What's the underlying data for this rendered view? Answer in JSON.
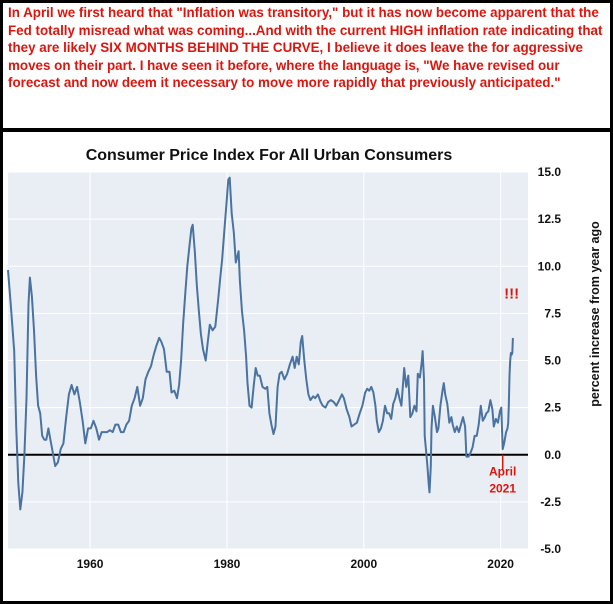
{
  "note": {
    "text": "In April we first heard that \"Inflation was transitory,\" but it has now become apparent that the  Fed totally misread what was coming...And with the current HIGH inflation rate indicating that they are likely SIX MONTHS BEHIND THE CURVE, I believe it does leave the for aggressive moves on their part. I have seen it before, where the language is, \"We have revised our forecast and now deem it necessary to move more rapidly that previously anticipated.\"",
    "color": "#e0140c"
  },
  "chart_data": {
    "type": "line",
    "title": "Consumer Price Index For All Urban Consumers",
    "ylabel": "percent increase from year ago",
    "xlim": [
      1948,
      2024
    ],
    "ylim": [
      -5,
      15
    ],
    "x_ticks": [
      1960,
      1980,
      2000,
      2020
    ],
    "x_tick_labels": [
      "1960",
      "1980",
      "2000",
      "2020"
    ],
    "y_ticks": [
      15,
      12.5,
      10,
      7.5,
      5,
      2.5,
      0,
      -2.5,
      -5
    ],
    "y_tick_labels": [
      "15.0",
      "12.5",
      "10.0",
      "7.5",
      "5.0",
      "2.5",
      "0.0",
      "-2.5",
      "-5.0"
    ],
    "grid": true,
    "zero_line": true,
    "colors": {
      "line": "#4a73a2",
      "plot_bg": "#e9eef5",
      "grid": "#ffffff",
      "annotation": "#e0140c"
    },
    "annotations": [
      {
        "text": "!!!",
        "x": 2021.6,
        "y": 8.3
      },
      {
        "text": "April",
        "x": 2020.3,
        "y": -1.1
      },
      {
        "text": "2021",
        "x": 2020.3,
        "y": -2.0
      }
    ],
    "marker": {
      "x": 2020.3,
      "y_from": 0,
      "y_to": -0.8
    },
    "series": [
      {
        "points": [
          [
            1948.0,
            9.8
          ],
          [
            1948.4,
            8.0
          ],
          [
            1948.9,
            5.5
          ],
          [
            1949.2,
            1.5
          ],
          [
            1949.5,
            -1.5
          ],
          [
            1949.8,
            -2.9
          ],
          [
            1950.1,
            -2.0
          ],
          [
            1950.4,
            0.0
          ],
          [
            1950.7,
            3.0
          ],
          [
            1951.0,
            8.0
          ],
          [
            1951.2,
            9.4
          ],
          [
            1951.5,
            8.4
          ],
          [
            1951.8,
            6.6
          ],
          [
            1952.1,
            4.2
          ],
          [
            1952.4,
            2.6
          ],
          [
            1952.7,
            2.2
          ],
          [
            1953.0,
            1.0
          ],
          [
            1953.3,
            0.8
          ],
          [
            1953.6,
            0.8
          ],
          [
            1953.9,
            1.4
          ],
          [
            1954.2,
            0.8
          ],
          [
            1954.5,
            0.2
          ],
          [
            1954.9,
            -0.6
          ],
          [
            1955.3,
            -0.4
          ],
          [
            1955.7,
            0.3
          ],
          [
            1956.1,
            0.6
          ],
          [
            1956.5,
            2.0
          ],
          [
            1956.9,
            3.2
          ],
          [
            1957.3,
            3.7
          ],
          [
            1957.7,
            3.2
          ],
          [
            1958.1,
            3.6
          ],
          [
            1958.5,
            2.8
          ],
          [
            1958.9,
            1.8
          ],
          [
            1959.3,
            0.6
          ],
          [
            1959.7,
            1.4
          ],
          [
            1960.1,
            1.4
          ],
          [
            1960.5,
            1.8
          ],
          [
            1960.9,
            1.4
          ],
          [
            1961.3,
            0.8
          ],
          [
            1961.7,
            1.2
          ],
          [
            1962.1,
            1.2
          ],
          [
            1962.5,
            1.2
          ],
          [
            1962.9,
            1.3
          ],
          [
            1963.3,
            1.2
          ],
          [
            1963.7,
            1.6
          ],
          [
            1964.1,
            1.6
          ],
          [
            1964.5,
            1.2
          ],
          [
            1964.9,
            1.2
          ],
          [
            1965.3,
            1.6
          ],
          [
            1965.7,
            1.8
          ],
          [
            1966.1,
            2.6
          ],
          [
            1966.5,
            3.0
          ],
          [
            1966.9,
            3.6
          ],
          [
            1967.3,
            2.6
          ],
          [
            1967.7,
            3.0
          ],
          [
            1968.1,
            4.0
          ],
          [
            1968.5,
            4.4
          ],
          [
            1968.9,
            4.7
          ],
          [
            1969.3,
            5.3
          ],
          [
            1969.7,
            5.8
          ],
          [
            1970.1,
            6.2
          ],
          [
            1970.4,
            6.0
          ],
          [
            1970.8,
            5.6
          ],
          [
            1971.2,
            4.4
          ],
          [
            1971.6,
            4.4
          ],
          [
            1971.9,
            3.3
          ],
          [
            1972.3,
            3.4
          ],
          [
            1972.7,
            3.0
          ],
          [
            1973.0,
            3.7
          ],
          [
            1973.3,
            5.0
          ],
          [
            1973.6,
            7.0
          ],
          [
            1973.9,
            8.5
          ],
          [
            1974.2,
            10.0
          ],
          [
            1974.5,
            11.0
          ],
          [
            1974.8,
            12.0
          ],
          [
            1975.0,
            12.2
          ],
          [
            1975.3,
            10.8
          ],
          [
            1975.6,
            9.0
          ],
          [
            1975.9,
            7.6
          ],
          [
            1976.2,
            6.4
          ],
          [
            1976.5,
            5.6
          ],
          [
            1976.9,
            5.0
          ],
          [
            1977.2,
            6.0
          ],
          [
            1977.5,
            6.9
          ],
          [
            1977.9,
            6.6
          ],
          [
            1978.3,
            6.8
          ],
          [
            1978.7,
            8.2
          ],
          [
            1979.0,
            9.3
          ],
          [
            1979.3,
            10.4
          ],
          [
            1979.6,
            11.8
          ],
          [
            1979.9,
            13.2
          ],
          [
            1980.2,
            14.6
          ],
          [
            1980.4,
            14.7
          ],
          [
            1980.7,
            12.8
          ],
          [
            1981.0,
            11.8
          ],
          [
            1981.3,
            10.2
          ],
          [
            1981.7,
            10.8
          ],
          [
            1981.9,
            9.2
          ],
          [
            1982.2,
            7.6
          ],
          [
            1982.5,
            6.6
          ],
          [
            1982.8,
            5.2
          ],
          [
            1983.0,
            3.8
          ],
          [
            1983.3,
            2.6
          ],
          [
            1983.6,
            2.5
          ],
          [
            1983.9,
            3.6
          ],
          [
            1984.2,
            4.6
          ],
          [
            1984.5,
            4.2
          ],
          [
            1984.8,
            4.2
          ],
          [
            1985.2,
            3.6
          ],
          [
            1985.6,
            3.5
          ],
          [
            1985.9,
            3.6
          ],
          [
            1986.2,
            2.2
          ],
          [
            1986.5,
            1.6
          ],
          [
            1986.8,
            1.1
          ],
          [
            1987.1,
            1.5
          ],
          [
            1987.4,
            3.6
          ],
          [
            1987.7,
            4.3
          ],
          [
            1988.0,
            4.4
          ],
          [
            1988.4,
            4.0
          ],
          [
            1988.8,
            4.3
          ],
          [
            1989.2,
            4.8
          ],
          [
            1989.6,
            5.2
          ],
          [
            1989.9,
            4.6
          ],
          [
            1990.2,
            5.2
          ],
          [
            1990.5,
            4.8
          ],
          [
            1990.8,
            6.0
          ],
          [
            1991.0,
            6.3
          ],
          [
            1991.3,
            5.0
          ],
          [
            1991.6,
            4.0
          ],
          [
            1991.9,
            3.2
          ],
          [
            1992.2,
            2.9
          ],
          [
            1992.6,
            3.1
          ],
          [
            1992.9,
            3.0
          ],
          [
            1993.3,
            3.2
          ],
          [
            1993.7,
            2.8
          ],
          [
            1994.0,
            2.6
          ],
          [
            1994.4,
            2.5
          ],
          [
            1994.8,
            2.8
          ],
          [
            1995.2,
            2.9
          ],
          [
            1995.6,
            2.8
          ],
          [
            1996.0,
            2.6
          ],
          [
            1996.4,
            2.9
          ],
          [
            1996.8,
            3.2
          ],
          [
            1997.1,
            3.0
          ],
          [
            1997.5,
            2.4
          ],
          [
            1997.9,
            2.0
          ],
          [
            1998.2,
            1.5
          ],
          [
            1998.6,
            1.6
          ],
          [
            1999.0,
            1.7
          ],
          [
            1999.4,
            2.2
          ],
          [
            1999.8,
            2.6
          ],
          [
            2000.2,
            3.3
          ],
          [
            2000.5,
            3.5
          ],
          [
            2000.8,
            3.4
          ],
          [
            2001.1,
            3.6
          ],
          [
            2001.4,
            3.3
          ],
          [
            2001.7,
            2.6
          ],
          [
            2001.9,
            1.8
          ],
          [
            2002.2,
            1.2
          ],
          [
            2002.5,
            1.4
          ],
          [
            2002.8,
            1.8
          ],
          [
            2003.1,
            2.6
          ],
          [
            2003.4,
            2.2
          ],
          [
            2003.7,
            2.2
          ],
          [
            2004.0,
            1.9
          ],
          [
            2004.3,
            2.7
          ],
          [
            2004.6,
            3.0
          ],
          [
            2004.9,
            3.5
          ],
          [
            2005.2,
            3.0
          ],
          [
            2005.5,
            2.6
          ],
          [
            2005.7,
            3.6
          ],
          [
            2005.9,
            4.6
          ],
          [
            2006.2,
            3.6
          ],
          [
            2006.5,
            4.2
          ],
          [
            2006.8,
            2.0
          ],
          [
            2007.1,
            2.2
          ],
          [
            2007.4,
            2.6
          ],
          [
            2007.7,
            2.3
          ],
          [
            2007.9,
            4.3
          ],
          [
            2008.2,
            4.1
          ],
          [
            2008.5,
            5.0
          ],
          [
            2008.6,
            5.5
          ],
          [
            2008.8,
            4.0
          ],
          [
            2008.9,
            1.0
          ],
          [
            2009.1,
            0.2
          ],
          [
            2009.3,
            -0.6
          ],
          [
            2009.5,
            -1.6
          ],
          [
            2009.6,
            -2.0
          ],
          [
            2009.8,
            -0.6
          ],
          [
            2009.9,
            1.4
          ],
          [
            2010.1,
            2.6
          ],
          [
            2010.4,
            2.0
          ],
          [
            2010.7,
            1.2
          ],
          [
            2010.9,
            1.4
          ],
          [
            2011.2,
            2.6
          ],
          [
            2011.5,
            3.4
          ],
          [
            2011.7,
            3.8
          ],
          [
            2011.9,
            3.2
          ],
          [
            2012.2,
            2.7
          ],
          [
            2012.5,
            1.7
          ],
          [
            2012.8,
            2.0
          ],
          [
            2013.0,
            1.6
          ],
          [
            2013.3,
            1.2
          ],
          [
            2013.6,
            1.5
          ],
          [
            2013.9,
            1.2
          ],
          [
            2014.2,
            1.6
          ],
          [
            2014.5,
            2.0
          ],
          [
            2014.8,
            1.5
          ],
          [
            2015.0,
            -0.1
          ],
          [
            2015.3,
            -0.1
          ],
          [
            2015.6,
            0.1
          ],
          [
            2015.9,
            0.4
          ],
          [
            2016.2,
            1.0
          ],
          [
            2016.5,
            1.0
          ],
          [
            2016.8,
            1.6
          ],
          [
            2017.1,
            2.6
          ],
          [
            2017.4,
            1.8
          ],
          [
            2017.7,
            2.0
          ],
          [
            2017.9,
            2.2
          ],
          [
            2018.2,
            2.3
          ],
          [
            2018.5,
            2.9
          ],
          [
            2018.8,
            2.4
          ],
          [
            2019.0,
            1.5
          ],
          [
            2019.3,
            1.9
          ],
          [
            2019.6,
            1.7
          ],
          [
            2019.9,
            2.3
          ],
          [
            2020.1,
            2.5
          ],
          [
            2020.3,
            0.3
          ],
          [
            2020.5,
            0.6
          ],
          [
            2020.8,
            1.2
          ],
          [
            2021.0,
            1.4
          ],
          [
            2021.1,
            1.7
          ],
          [
            2021.2,
            2.6
          ],
          [
            2021.3,
            4.2
          ],
          [
            2021.4,
            5.0
          ],
          [
            2021.5,
            5.4
          ],
          [
            2021.6,
            5.3
          ],
          [
            2021.7,
            5.4
          ],
          [
            2021.8,
            6.2
          ]
        ]
      }
    ]
  }
}
